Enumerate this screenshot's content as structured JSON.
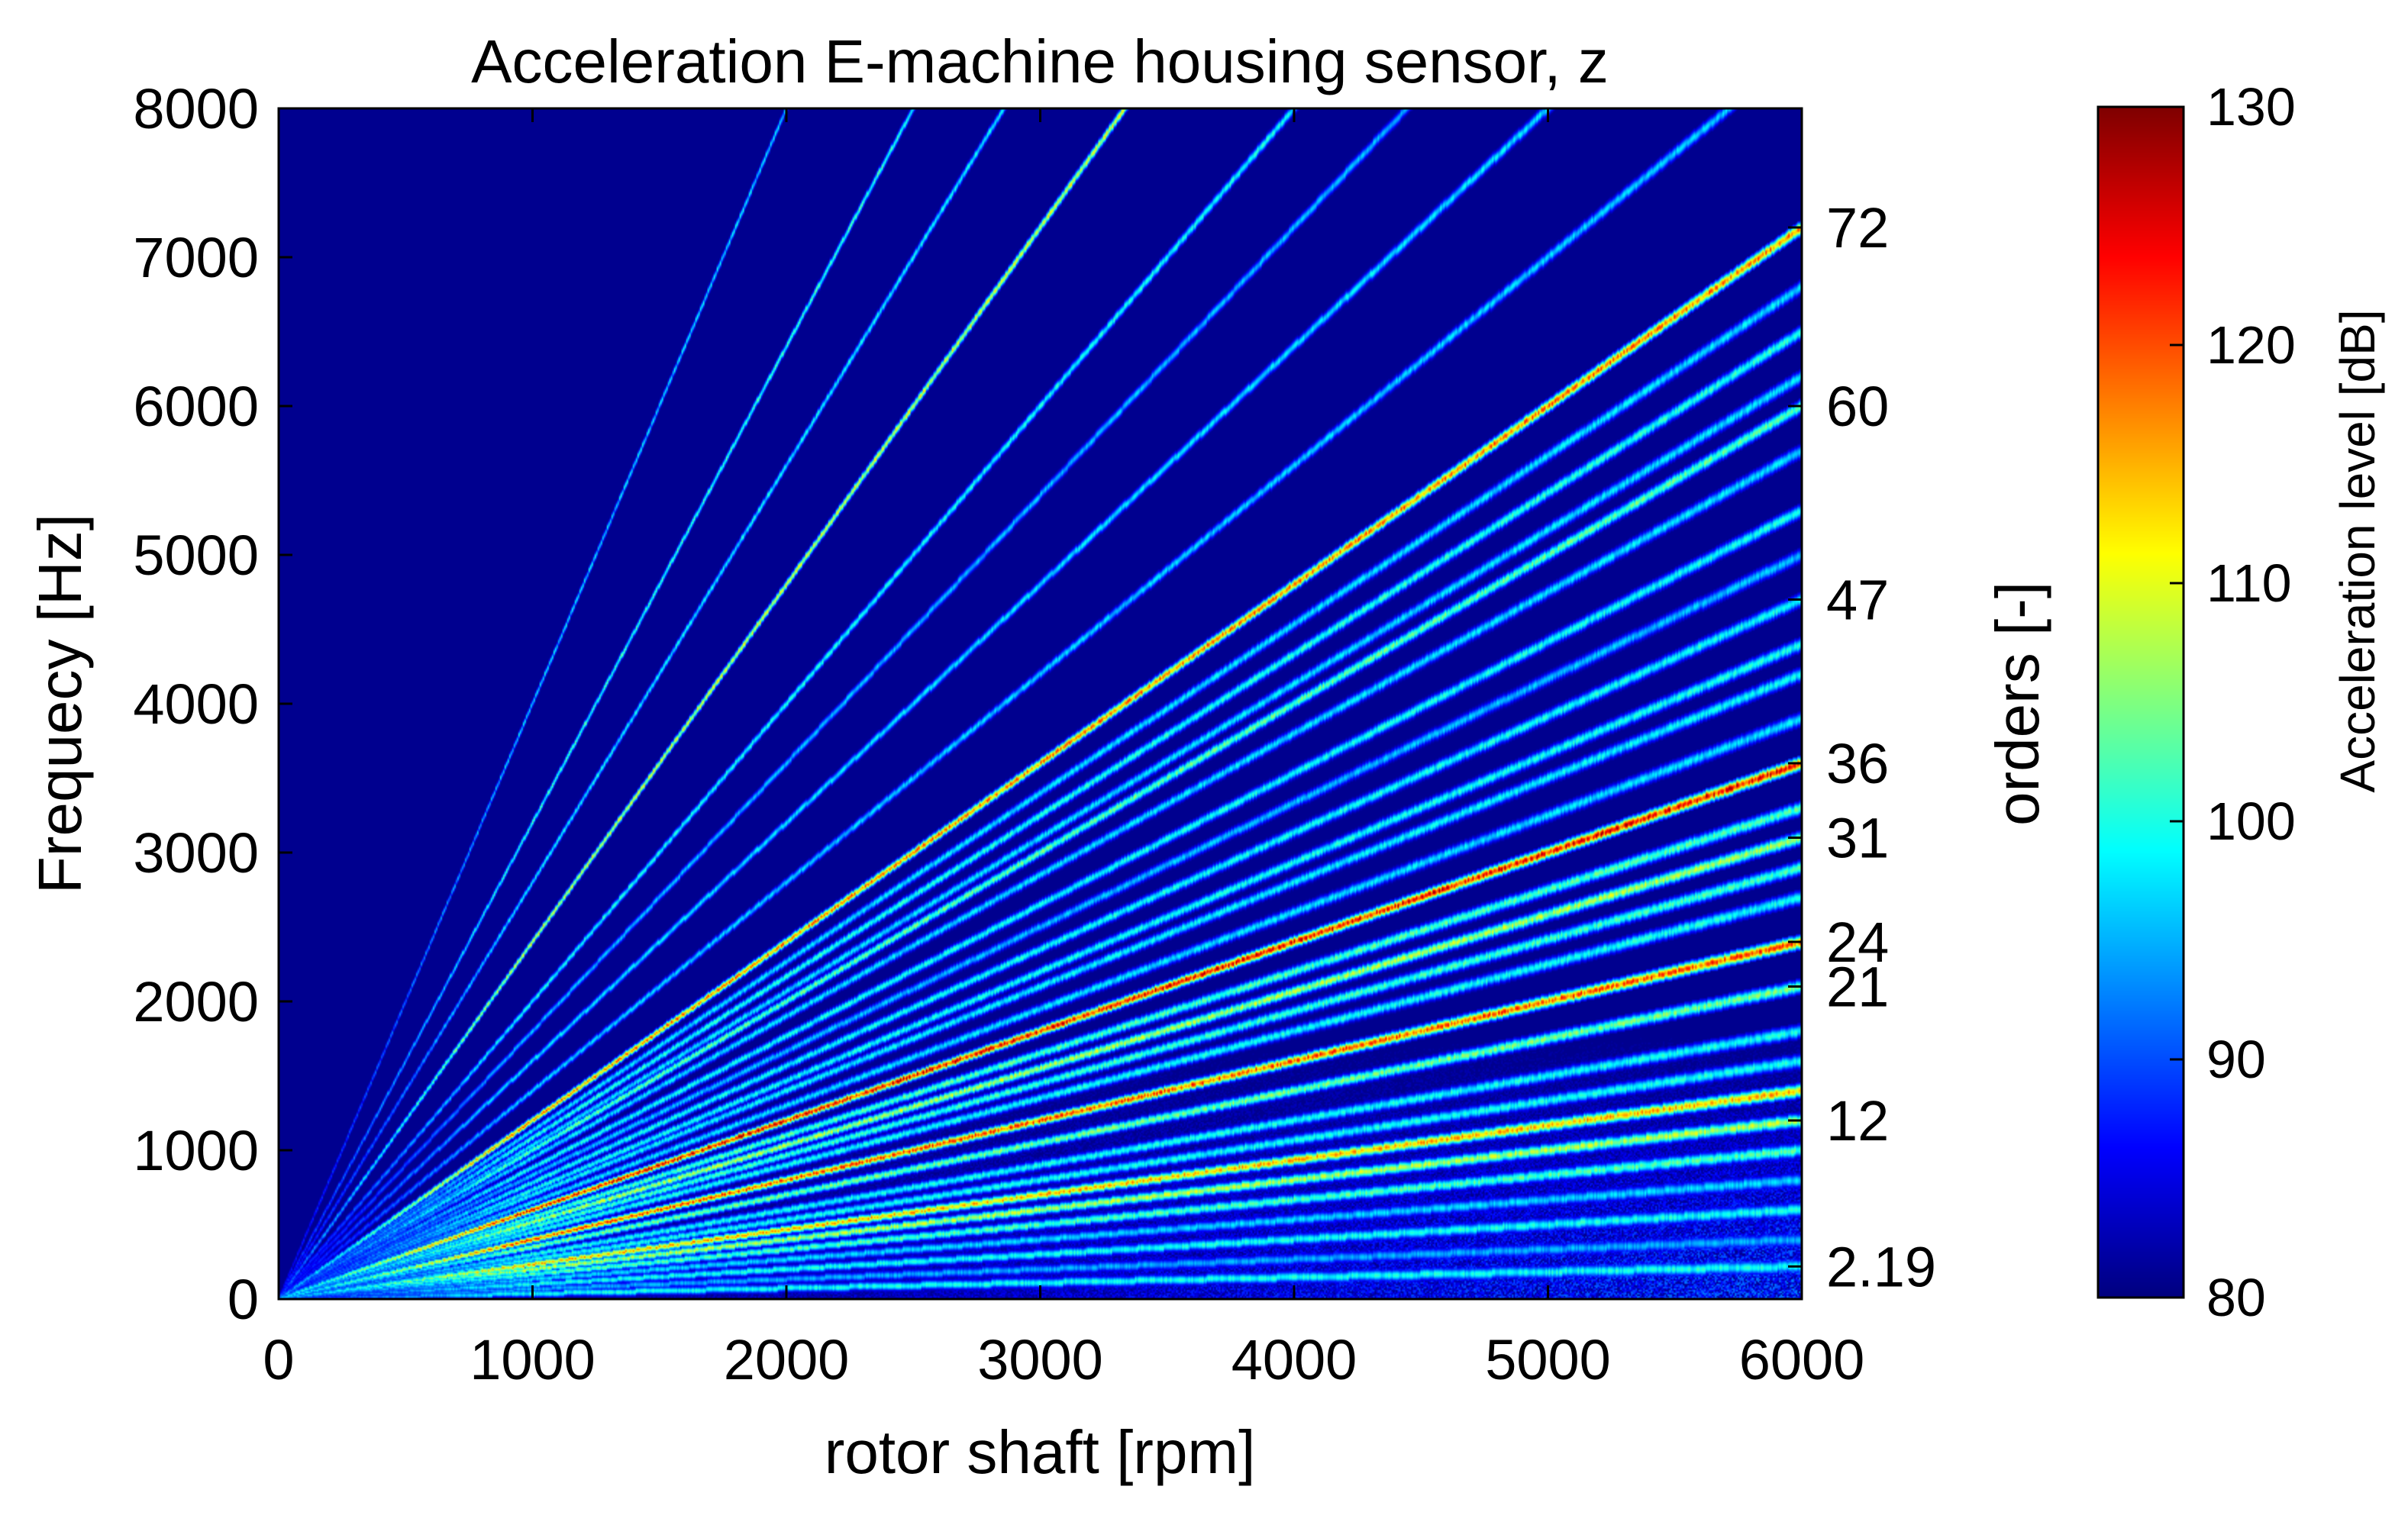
{
  "chart_data": {
    "type": "heatmap",
    "title": "Acceleration E-machine housing sensor, z",
    "xlabel": "rotor shaft [rpm]",
    "ylabel": "Frequecy [Hz]",
    "right_ylabel": "orders [-]",
    "colorbar_label": "Acceleration level [dB]",
    "colormap": "jet",
    "background_color": "#00008f",
    "xlim": [
      0,
      6000
    ],
    "ylim": [
      0,
      8000
    ],
    "clim": [
      80,
      130
    ],
    "x_ticks": [
      0,
      1000,
      2000,
      3000,
      4000,
      5000,
      6000
    ],
    "y_ticks": [
      0,
      1000,
      2000,
      3000,
      4000,
      5000,
      6000,
      7000,
      8000
    ],
    "colorbar_ticks": [
      80,
      90,
      100,
      110,
      120,
      130
    ],
    "order_labels": [
      "72",
      "60",
      "47",
      "36",
      "31",
      "24",
      "21",
      "12",
      "2.19"
    ],
    "order_lines": [
      {
        "order": 2.19,
        "level": 100
      },
      {
        "order": 4,
        "level": 95
      },
      {
        "order": 6,
        "level": 100
      },
      {
        "order": 8,
        "level": 97
      },
      {
        "order": 10,
        "level": 103
      },
      {
        "order": 12,
        "level": 108
      },
      {
        "order": 14,
        "level": 115
      },
      {
        "order": 16,
        "level": 100
      },
      {
        "order": 18,
        "level": 100
      },
      {
        "order": 21,
        "level": 105
      },
      {
        "order": 24,
        "level": 120
      },
      {
        "order": 27,
        "level": 100
      },
      {
        "order": 29,
        "level": 102
      },
      {
        "order": 31,
        "level": 108
      },
      {
        "order": 33,
        "level": 103
      },
      {
        "order": 36,
        "level": 124
      },
      {
        "order": 39,
        "level": 98
      },
      {
        "order": 42,
        "level": 99
      },
      {
        "order": 44,
        "level": 100
      },
      {
        "order": 47,
        "level": 100
      },
      {
        "order": 50,
        "level": 96
      },
      {
        "order": 53,
        "level": 100
      },
      {
        "order": 57,
        "level": 98
      },
      {
        "order": 60,
        "level": 104
      },
      {
        "order": 62,
        "level": 98
      },
      {
        "order": 65,
        "level": 101
      },
      {
        "order": 68,
        "level": 98
      },
      {
        "order": 72,
        "level": 118
      },
      {
        "order": 84,
        "level": 97
      },
      {
        "order": 96,
        "level": 98
      },
      {
        "order": 108,
        "level": 96
      },
      {
        "order": 120,
        "level": 100
      },
      {
        "order": 144,
        "level": 110
      },
      {
        "order": 168,
        "level": 99
      },
      {
        "order": 192,
        "level": 102
      },
      {
        "order": 240,
        "level": 98
      }
    ]
  }
}
